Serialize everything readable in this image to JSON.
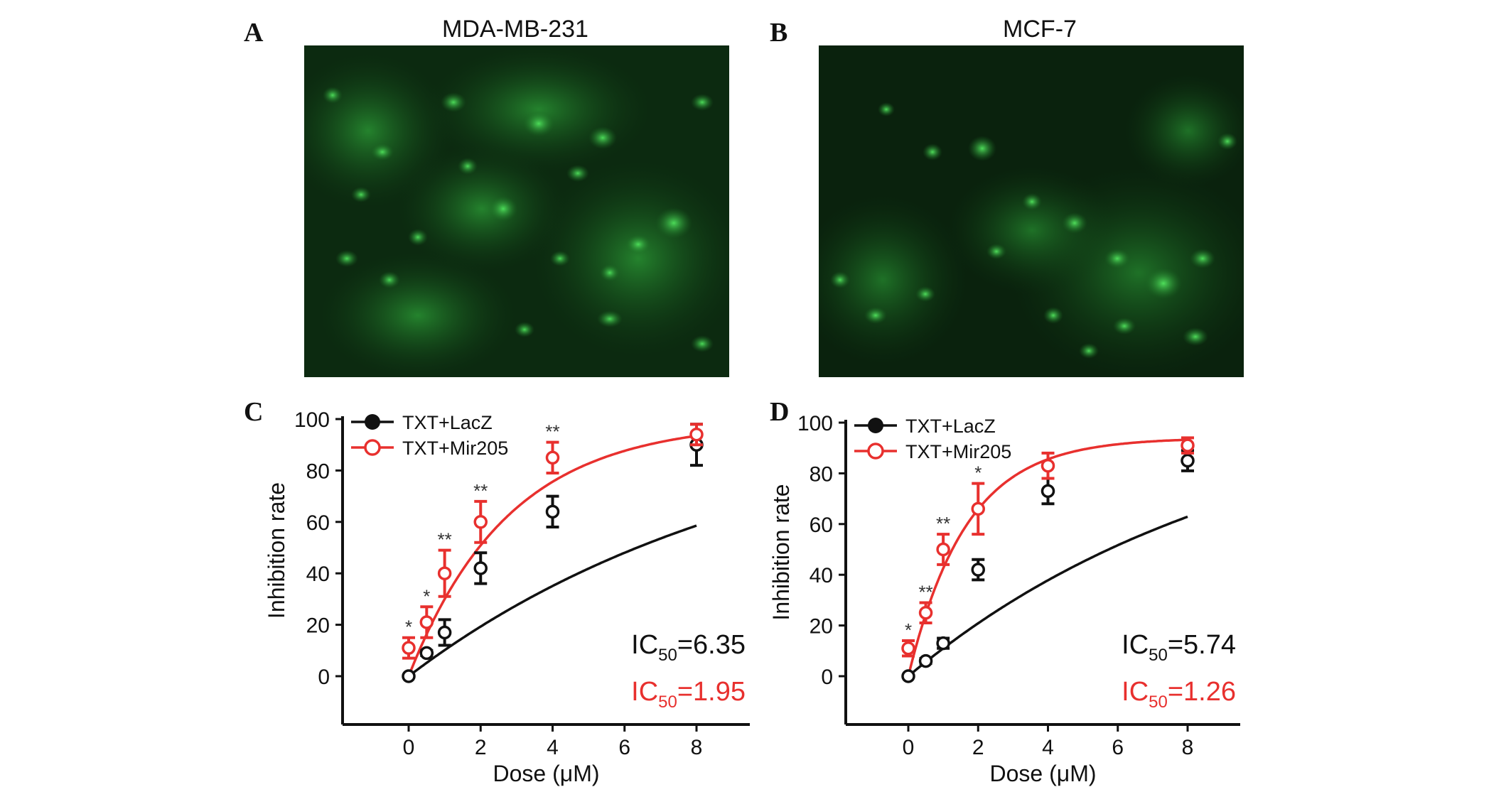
{
  "panels": {
    "A": {
      "letter": "A",
      "title": "MDA-MB-231"
    },
    "B": {
      "letter": "B",
      "title": "MCF-7"
    },
    "C": {
      "letter": "C"
    },
    "D": {
      "letter": "D"
    }
  },
  "colors": {
    "lacz": "#111111",
    "mir205": "#e8302e",
    "fluorescence_bg": "#0a1a0a",
    "fluorescence_cell": "#3cd64a"
  },
  "chart_data": [
    {
      "type": "scatter",
      "panel": "C",
      "xlabel": "Dose (μM)",
      "ylabel": "Inhibition rate",
      "xticks": [
        0,
        2,
        4,
        6,
        8
      ],
      "yticks": [
        0,
        20,
        40,
        60,
        80,
        100
      ],
      "xlim": [
        -1.8,
        9.5
      ],
      "ylim": [
        -18,
        100
      ],
      "legend_position": "top-left",
      "series": [
        {
          "name": "TXT+LacZ",
          "color": "#111111",
          "marker": "filled-circle",
          "points": [
            {
              "x": 0,
              "y": 0,
              "err": 0
            },
            {
              "x": 0.5,
              "y": 9,
              "err": 1
            },
            {
              "x": 1,
              "y": 17,
              "err": 5
            },
            {
              "x": 2,
              "y": 42,
              "err": 6
            },
            {
              "x": 4,
              "y": 64,
              "err": 6
            },
            {
              "x": 8,
              "y": 90,
              "err": 8
            }
          ],
          "curve_max": 106,
          "ic50": "6.35"
        },
        {
          "name": "TXT+Mir205",
          "color": "#e8302e",
          "marker": "open-circle",
          "points": [
            {
              "x": 0,
              "y": 11,
              "err": 4,
              "sig": "*"
            },
            {
              "x": 0.5,
              "y": 21,
              "err": 6,
              "sig": "*"
            },
            {
              "x": 1,
              "y": 40,
              "err": 9,
              "sig": "**"
            },
            {
              "x": 2,
              "y": 60,
              "err": 8,
              "sig": "**"
            },
            {
              "x": 4,
              "y": 85,
              "err": 6,
              "sig": "**"
            },
            {
              "x": 8,
              "y": 94,
              "err": 4
            }
          ],
          "curve_max": 99,
          "ic50": "1.95"
        }
      ],
      "annotations": [
        {
          "prefix": "IC",
          "sub": "50",
          "text": "=6.35",
          "color": "#111111"
        },
        {
          "prefix": "IC",
          "sub": "50",
          "text": "=1.95",
          "color": "#e8302e"
        }
      ]
    },
    {
      "type": "scatter",
      "panel": "D",
      "xlabel": "Dose (μM)",
      "ylabel": "Inhibition rate",
      "xticks": [
        0,
        2,
        4,
        6,
        8
      ],
      "yticks": [
        0,
        20,
        40,
        60,
        80,
        100
      ],
      "xlim": [
        -1.8,
        9.5
      ],
      "ylim": [
        -18,
        100
      ],
      "legend_position": "top-left",
      "series": [
        {
          "name": "TXT+LacZ",
          "color": "#111111",
          "marker": "filled-circle",
          "points": [
            {
              "x": 0,
              "y": 0,
              "err": 0
            },
            {
              "x": 0.5,
              "y": 6,
              "err": 1
            },
            {
              "x": 1,
              "y": 13,
              "err": 2
            },
            {
              "x": 2,
              "y": 42,
              "err": 4
            },
            {
              "x": 4,
              "y": 73,
              "err": 5
            },
            {
              "x": 8,
              "y": 85,
              "err": 4
            }
          ],
          "curve_max": 112,
          "ic50": "5.74"
        },
        {
          "name": "TXT+Mir205",
          "color": "#e8302e",
          "marker": "open-circle",
          "points": [
            {
              "x": 0,
              "y": 11,
              "err": 3,
              "sig": "*"
            },
            {
              "x": 0.5,
              "y": 25,
              "err": 4,
              "sig": "**"
            },
            {
              "x": 1,
              "y": 50,
              "err": 6,
              "sig": "**"
            },
            {
              "x": 2,
              "y": 66,
              "err": 10,
              "sig": "*"
            },
            {
              "x": 4,
              "y": 83,
              "err": 5
            },
            {
              "x": 8,
              "y": 91,
              "err": 3
            }
          ],
          "curve_max": 94,
          "ic50": "1.26"
        }
      ],
      "annotations": [
        {
          "prefix": "IC",
          "sub": "50",
          "text": "=5.74",
          "color": "#111111"
        },
        {
          "prefix": "IC",
          "sub": "50",
          "text": "=1.26",
          "color": "#e8302e"
        }
      ]
    }
  ]
}
